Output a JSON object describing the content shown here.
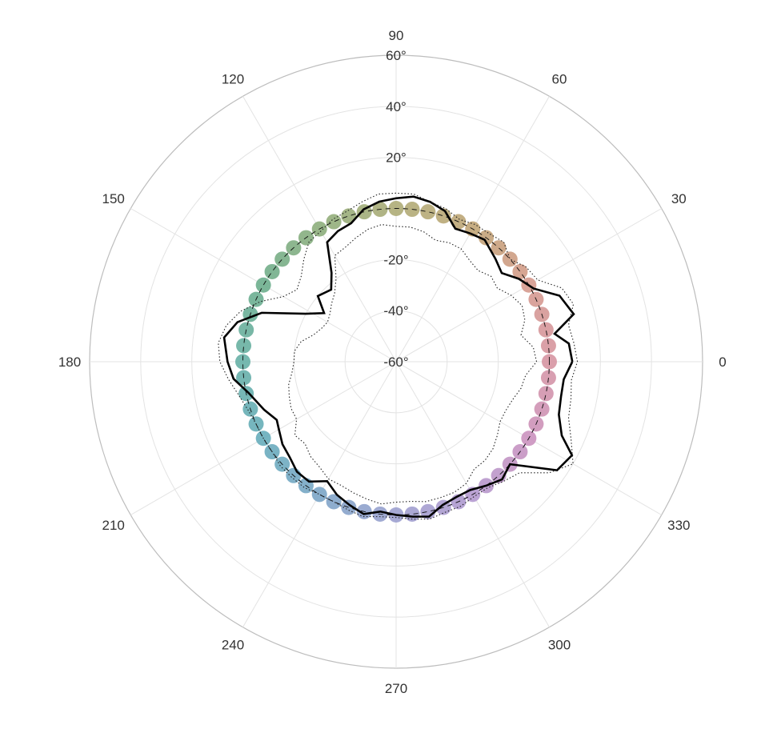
{
  "chart_data": {
    "type": "polar",
    "angle_ticks": [
      0,
      30,
      60,
      90,
      120,
      150,
      180,
      210,
      240,
      270,
      300,
      330
    ],
    "angle_tick_labels": [
      "0",
      "30",
      "60",
      "90",
      "120",
      "150",
      "180",
      "210",
      "240",
      "270",
      "300",
      "330"
    ],
    "radial_ticks": [
      -60,
      -40,
      -20,
      20,
      40,
      60
    ],
    "radial_tick_labels": [
      "-60°",
      "-40°",
      "-20°",
      "20°",
      "40°",
      "60°"
    ],
    "radial_range": [
      -60,
      60
    ],
    "radial_grid": [
      -60,
      -40,
      -20,
      0,
      20,
      40,
      60
    ],
    "grid": true,
    "legend": "none",
    "series": [
      {
        "kind": "points",
        "r": 0,
        "angles": [
          0,
          6,
          12,
          18,
          24,
          30,
          36,
          42,
          48,
          54,
          60,
          66,
          72,
          78,
          84,
          90,
          96,
          102,
          108,
          114,
          120,
          126,
          132,
          138,
          144,
          150,
          156,
          162,
          168,
          174,
          180,
          186,
          192,
          198,
          204,
          210,
          216,
          222,
          228,
          234,
          240,
          246,
          252,
          258,
          264,
          270,
          276,
          282,
          288,
          294,
          300,
          306,
          312,
          318,
          324,
          330,
          336,
          342,
          348,
          354
        ]
      },
      {
        "kind": "dashed-line",
        "r": 0,
        "color": "#111111"
      },
      {
        "kind": "solid-line",
        "color": "#000000",
        "points": [
          [
            0,
            9
          ],
          [
            6,
            8
          ],
          [
            10,
            3
          ],
          [
            15,
            12
          ],
          [
            22,
            9
          ],
          [
            28,
            1
          ],
          [
            34,
            -2
          ],
          [
            40,
            -6
          ],
          [
            46,
            -4
          ],
          [
            54,
            -1
          ],
          [
            60,
            -2
          ],
          [
            66,
            -3
          ],
          [
            72,
            2
          ],
          [
            78,
            4
          ],
          [
            84,
            5
          ],
          [
            90,
            4
          ],
          [
            96,
            3
          ],
          [
            102,
            1
          ],
          [
            108,
            -3
          ],
          [
            114,
            -4
          ],
          [
            120,
            -6
          ],
          [
            126,
            -17
          ],
          [
            132,
            -22
          ],
          [
            140,
            -20
          ],
          [
            146,
            -26
          ],
          [
            152,
            -20
          ],
          [
            160,
            -4
          ],
          [
            166,
            4
          ],
          [
            172,
            8
          ],
          [
            180,
            6
          ],
          [
            186,
            4
          ],
          [
            192,
            -1
          ],
          [
            200,
            -5
          ],
          [
            206,
            -8
          ],
          [
            210,
            -7
          ],
          [
            216,
            -5
          ],
          [
            222,
            -4
          ],
          [
            228,
            -2
          ],
          [
            234,
            -2
          ],
          [
            240,
            -6
          ],
          [
            246,
            -3
          ],
          [
            252,
            -1
          ],
          [
            258,
            1
          ],
          [
            264,
            -1
          ],
          [
            270,
            0
          ],
          [
            276,
            1
          ],
          [
            282,
            2
          ],
          [
            288,
            -1
          ],
          [
            294,
            -2
          ],
          [
            300,
            -2
          ],
          [
            306,
            0
          ],
          [
            312,
            2
          ],
          [
            318,
            0
          ],
          [
            326,
            16
          ],
          [
            332,
            18
          ],
          [
            336,
            11
          ],
          [
            342,
            7
          ],
          [
            348,
            6
          ],
          [
            354,
            6
          ],
          [
            360,
            9
          ]
        ]
      },
      {
        "kind": "dotted-line",
        "color": "#222222",
        "points": [
          [
            0,
            11
          ],
          [
            6,
            10
          ],
          [
            12,
            9
          ],
          [
            18,
            13
          ],
          [
            24,
            11
          ],
          [
            30,
            4
          ],
          [
            36,
            3
          ],
          [
            42,
            0
          ],
          [
            48,
            3
          ],
          [
            54,
            2
          ],
          [
            60,
            2
          ],
          [
            66,
            1
          ],
          [
            72,
            3
          ],
          [
            78,
            4
          ],
          [
            84,
            6
          ],
          [
            90,
            6
          ],
          [
            96,
            6
          ],
          [
            102,
            4
          ],
          [
            108,
            2
          ],
          [
            114,
            1
          ],
          [
            120,
            -1
          ],
          [
            126,
            -2
          ],
          [
            132,
            -6
          ],
          [
            138,
            -10
          ],
          [
            144,
            -12
          ],
          [
            150,
            -9
          ],
          [
            156,
            -2
          ],
          [
            162,
            4
          ],
          [
            168,
            8
          ],
          [
            174,
            10
          ],
          [
            180,
            9
          ],
          [
            186,
            6
          ],
          [
            192,
            3
          ],
          [
            198,
            1
          ],
          [
            204,
            0
          ],
          [
            210,
            0
          ],
          [
            216,
            0
          ],
          [
            222,
            1
          ],
          [
            228,
            1
          ],
          [
            234,
            1
          ],
          [
            240,
            0
          ],
          [
            246,
            0
          ],
          [
            252,
            1
          ],
          [
            258,
            2
          ],
          [
            264,
            1
          ],
          [
            270,
            1
          ],
          [
            276,
            2
          ],
          [
            282,
            3
          ],
          [
            288,
            2
          ],
          [
            294,
            2
          ],
          [
            300,
            1
          ],
          [
            306,
            1
          ],
          [
            312,
            3
          ],
          [
            318,
            5
          ],
          [
            324,
            14
          ],
          [
            330,
            20
          ],
          [
            336,
            15
          ],
          [
            342,
            11
          ],
          [
            348,
            10
          ],
          [
            354,
            9
          ],
          [
            360,
            11
          ]
        ]
      },
      {
        "kind": "dotted-line",
        "color": "#222222",
        "points": [
          [
            0,
            -5
          ],
          [
            6,
            -6
          ],
          [
            12,
            -10
          ],
          [
            18,
            -7
          ],
          [
            24,
            -6
          ],
          [
            30,
            -8
          ],
          [
            36,
            -11
          ],
          [
            42,
            -10
          ],
          [
            48,
            -12
          ],
          [
            54,
            -11
          ],
          [
            60,
            -9
          ],
          [
            66,
            -9
          ],
          [
            72,
            -10
          ],
          [
            78,
            -8
          ],
          [
            84,
            -7
          ],
          [
            90,
            -7
          ],
          [
            96,
            -6
          ],
          [
            102,
            -7
          ],
          [
            108,
            -9
          ],
          [
            114,
            -11
          ],
          [
            120,
            -12
          ],
          [
            126,
            -20
          ],
          [
            132,
            -24
          ],
          [
            138,
            -26
          ],
          [
            144,
            -28
          ],
          [
            150,
            -29
          ],
          [
            156,
            -28
          ],
          [
            162,
            -26
          ],
          [
            168,
            -22
          ],
          [
            174,
            -20
          ],
          [
            180,
            -20
          ],
          [
            186,
            -19
          ],
          [
            192,
            -17
          ],
          [
            198,
            -16
          ],
          [
            204,
            -15
          ],
          [
            210,
            -15
          ],
          [
            216,
            -11
          ],
          [
            222,
            -12
          ],
          [
            228,
            -10
          ],
          [
            234,
            -9
          ],
          [
            240,
            -7
          ],
          [
            246,
            -7
          ],
          [
            252,
            -6
          ],
          [
            258,
            -5
          ],
          [
            264,
            -4
          ],
          [
            270,
            -5
          ],
          [
            276,
            -5
          ],
          [
            282,
            -4
          ],
          [
            288,
            -4
          ],
          [
            294,
            -4
          ],
          [
            300,
            -5
          ],
          [
            306,
            -8
          ],
          [
            312,
            -8
          ],
          [
            318,
            -9
          ],
          [
            324,
            -11
          ],
          [
            330,
            -13
          ],
          [
            336,
            -13
          ],
          [
            342,
            -12
          ],
          [
            348,
            -10
          ],
          [
            354,
            -9
          ],
          [
            360,
            -5
          ]
        ]
      }
    ]
  }
}
